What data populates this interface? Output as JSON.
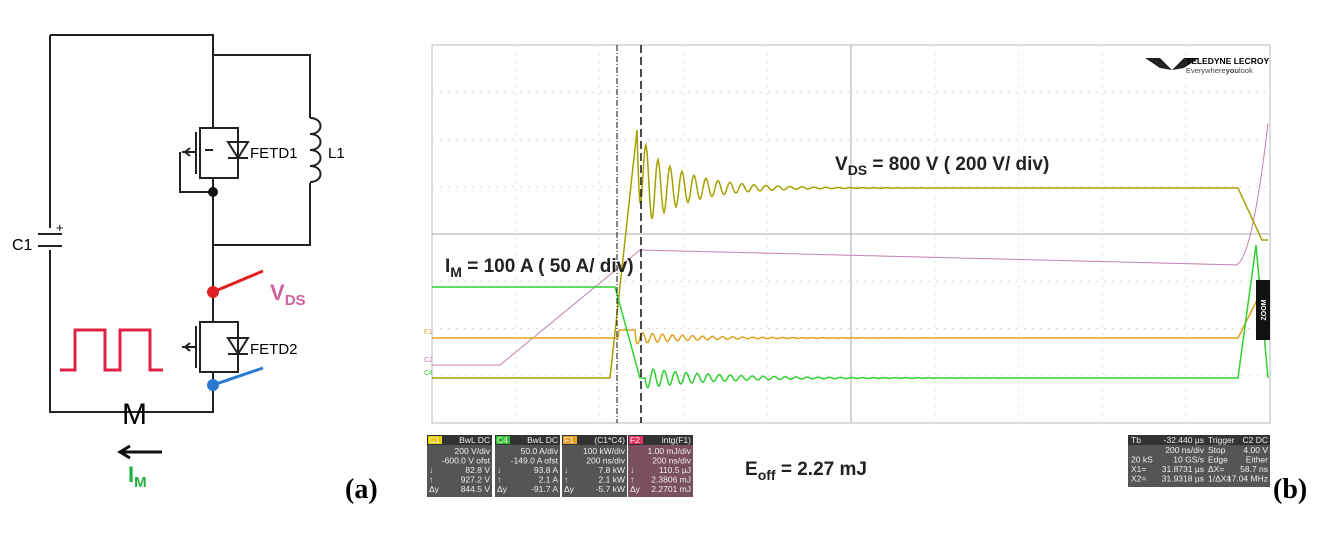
{
  "circuit": {
    "capacitor": "C1",
    "plus": "+",
    "fet_top": "FETD1",
    "inductor": "L1",
    "vds": {
      "main": "V",
      "sub": "DS"
    },
    "fet_bottom": "FETD2",
    "motor": "M",
    "current": {
      "main": "I",
      "sub": "M"
    }
  },
  "scope": {
    "logo": {
      "brand": "TELEDYNE LECROY",
      "tagline_a": "Everywhere",
      "tagline_b": "you",
      "tagline_c": "look"
    },
    "zoom": "ZOOM",
    "trace_markers": [
      "F1",
      "C2",
      "C4"
    ],
    "annotation_vds": {
      "main": "V",
      "sub": "DS",
      "rest": " = 800 V ( 200 V/ div)"
    },
    "annotation_im": {
      "main": "I",
      "sub": "M",
      "rest": " = 100 A ( 50 A/ div)"
    },
    "annotation_eoff": {
      "main": "E",
      "sub": "off",
      "rest": " = 2.27 mJ"
    },
    "panels": [
      {
        "header": [
          "C1",
          "BwL DC"
        ],
        "rows": [
          [
            "",
            "200 V/div"
          ],
          [
            "",
            "-600.0 V ofst"
          ],
          [
            "↓",
            "82.8 V"
          ],
          [
            "↑",
            "927.2 V"
          ],
          [
            "Δy",
            "844.5 V"
          ]
        ]
      },
      {
        "header": [
          "C4",
          "BwL DC"
        ],
        "rows": [
          [
            "",
            "50.0 A/div"
          ],
          [
            "",
            "-149.0 A ofst"
          ],
          [
            "↓",
            "93.8 A"
          ],
          [
            "↑",
            "2.1 A"
          ],
          [
            "Δy",
            "-91.7 A"
          ]
        ]
      },
      {
        "header": [
          "F1",
          "(C1*C4)"
        ],
        "rows": [
          [
            "",
            "100 kW/div"
          ],
          [
            "",
            "200 ns/div"
          ],
          [
            "↓",
            "7.8 kW"
          ],
          [
            "↑",
            "2.1 kW"
          ],
          [
            "Δy",
            "-5.7 kW"
          ]
        ]
      },
      {
        "header": [
          "F2",
          "intg(F1)"
        ],
        "rows": [
          [
            "",
            "1.00 mJ/div"
          ],
          [
            "",
            "200 ns/div"
          ],
          [
            "↓",
            "110.5 µJ"
          ],
          [
            "↑",
            "2.3806 mJ"
          ],
          [
            "Δy",
            "2.2701 mJ"
          ]
        ]
      }
    ],
    "timebase": {
      "header": [
        "Tb",
        "-32.440 µs",
        "Trigger",
        "C2 DC"
      ],
      "rows": [
        [
          "",
          "200 ns/div",
          "Stop",
          "4.00 V"
        ],
        [
          "20 kS",
          "10 GS/s",
          "Edge",
          "Either"
        ],
        [
          "X1=",
          "31.8731 µs",
          "ΔX=",
          "58.7 ns"
        ],
        [
          "X2=",
          "31.9318 µs",
          "1/ΔX=",
          "17.04 MHz"
        ]
      ]
    }
  },
  "labels": {
    "a": "(a)",
    "b": "(b)"
  }
}
